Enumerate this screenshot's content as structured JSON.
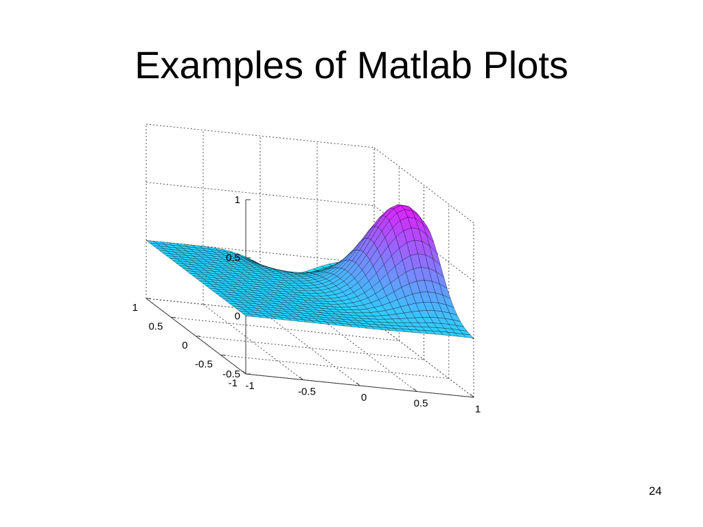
{
  "slide": {
    "title": "Examples of Matlab Plots",
    "page_number": "24"
  },
  "chart_data": {
    "type": "surface",
    "title": "",
    "xlabel": "",
    "ylabel": "",
    "zlabel": "",
    "grid": true,
    "box": false,
    "mesh_lines": true,
    "colormap": "cool",
    "colormap_colors": [
      "#00ffff",
      "#ff00ff"
    ],
    "edge_color": "#000000",
    "x_range": [
      -1,
      1
    ],
    "y_range": [
      -1,
      1
    ],
    "z_range": [
      -0.5,
      1
    ],
    "x_ticks": [
      -1,
      -0.5,
      0,
      0.5,
      1
    ],
    "x_tick_labels": [
      "-1",
      "-0.5",
      "0",
      "0.5",
      "1"
    ],
    "y_ticks": [
      -1,
      -0.5,
      0,
      0.5,
      1
    ],
    "y_tick_labels": [
      "-1",
      "-0.5",
      "0",
      "0.5",
      "1"
    ],
    "z_ticks": [
      -0.5,
      0,
      0.5,
      1
    ],
    "z_tick_labels": [
      "-0.5",
      "0",
      "0.5",
      "1"
    ],
    "mesh_resolution": [
      30,
      30
    ],
    "surface": {
      "description": "smooth peak rising toward x = 1, y = 0; approximately flat (0) along x = -1; dips below zero near x = 0, y = 1",
      "peak": {
        "x": 0.75,
        "y": 0.0,
        "z": 0.94
      },
      "trough": {
        "x": 0.15,
        "y": 1.0,
        "z": -0.18
      }
    }
  }
}
